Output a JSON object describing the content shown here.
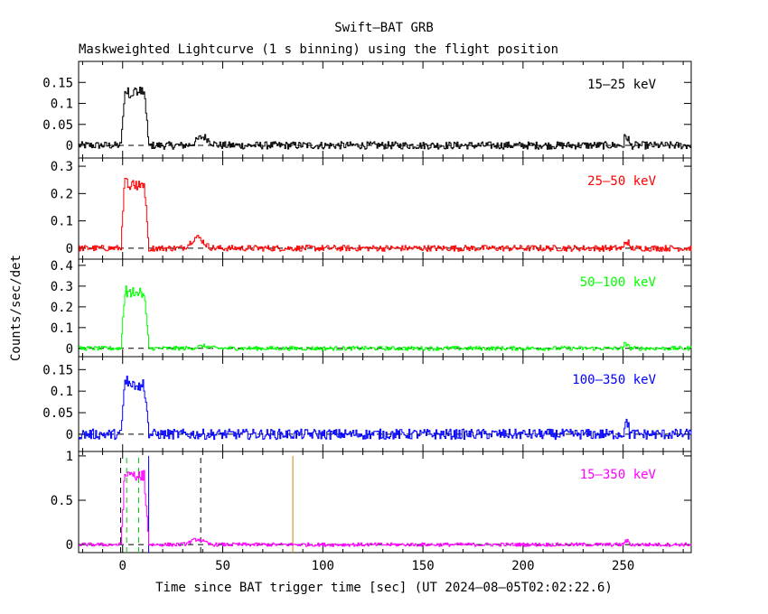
{
  "figure": {
    "title": "Swift–BAT GRB",
    "subtitle": "Maskweighted Lightcurve (1 s binning) using the flight position",
    "ylabel": "Counts/sec/det",
    "xlabel": "Time since BAT trigger time [sec] (UT 2024–08–05T02:02:22.6)"
  },
  "chart_data": {
    "type": "line",
    "x_range": [
      -22,
      284
    ],
    "x_ticks": [
      0,
      50,
      100,
      150,
      200,
      250
    ],
    "x_tick_labels": [
      "0",
      "50",
      "100",
      "150",
      "200",
      "250"
    ],
    "panels": [
      {
        "label": "15–25 keV",
        "color": "#000000",
        "ylim": [
          -0.03,
          0.2
        ],
        "y_ticks": [
          0,
          0.05,
          0.1,
          0.15
        ],
        "y_tick_labels": [
          "0",
          "0.05",
          "0.1",
          "0.15"
        ],
        "pulse_peak": 0.14,
        "pulse_start": -1,
        "pulse_end": 13,
        "bump_at": 40,
        "bump_height": 0.02,
        "noise": 0.009
      },
      {
        "label": "25–50 keV",
        "color": "#ff0000",
        "ylim": [
          -0.04,
          0.33
        ],
        "y_ticks": [
          0,
          0.1,
          0.2,
          0.3
        ],
        "y_tick_labels": [
          "0",
          "0.1",
          "0.2",
          "0.3"
        ],
        "pulse_peak": 0.26,
        "pulse_start": -1,
        "pulse_end": 13,
        "bump_at": 37,
        "bump_height": 0.04,
        "noise": 0.011
      },
      {
        "label": "50–100 keV",
        "color": "#00ff00",
        "ylim": [
          -0.04,
          0.43
        ],
        "y_ticks": [
          0,
          0.1,
          0.2,
          0.3,
          0.4
        ],
        "y_tick_labels": [
          "0",
          "0.1",
          "0.2",
          "0.3",
          "0.4"
        ],
        "pulse_peak": 0.3,
        "pulse_start": -1,
        "pulse_end": 13,
        "bump_at": 40,
        "bump_height": 0.01,
        "noise": 0.01
      },
      {
        "label": "100–350 keV",
        "color": "#0000ff",
        "ylim": [
          -0.04,
          0.18
        ],
        "y_ticks": [
          0,
          0.05,
          0.1,
          0.15
        ],
        "y_tick_labels": [
          "0",
          "0.05",
          "0.1",
          "0.15"
        ],
        "pulse_peak": 0.13,
        "pulse_start": -1,
        "pulse_end": 13,
        "bump_at": 40,
        "bump_height": 0.0,
        "noise": 0.012
      },
      {
        "label": "15–350 keV",
        "color": "#ff00ff",
        "ylim": [
          -0.09,
          1.05
        ],
        "y_ticks": [
          0,
          0.5,
          1
        ],
        "y_tick_labels": [
          "0",
          "0.5",
          "1"
        ],
        "pulse_peak": 0.85,
        "pulse_start": -1,
        "pulse_end": 13,
        "bump_at": 37,
        "bump_height": 0.06,
        "noise": 0.02,
        "markers": [
          {
            "x": -1,
            "color": "#000000",
            "dashed": true,
            "top": 1.0
          },
          {
            "x": 2,
            "color": "#00cc00",
            "dashed": true,
            "top": 0.98
          },
          {
            "x": 8,
            "color": "#00cc00",
            "dashed": true,
            "top": 0.98
          },
          {
            "x": 13,
            "color": "#0000ff",
            "dashed": false,
            "top": 1.0
          },
          {
            "x": 39,
            "color": "#000000",
            "dashed": true,
            "top": 1.0
          },
          {
            "x": 85,
            "color": "#cc8800",
            "dashed": false,
            "top": 1.0
          }
        ]
      }
    ]
  }
}
